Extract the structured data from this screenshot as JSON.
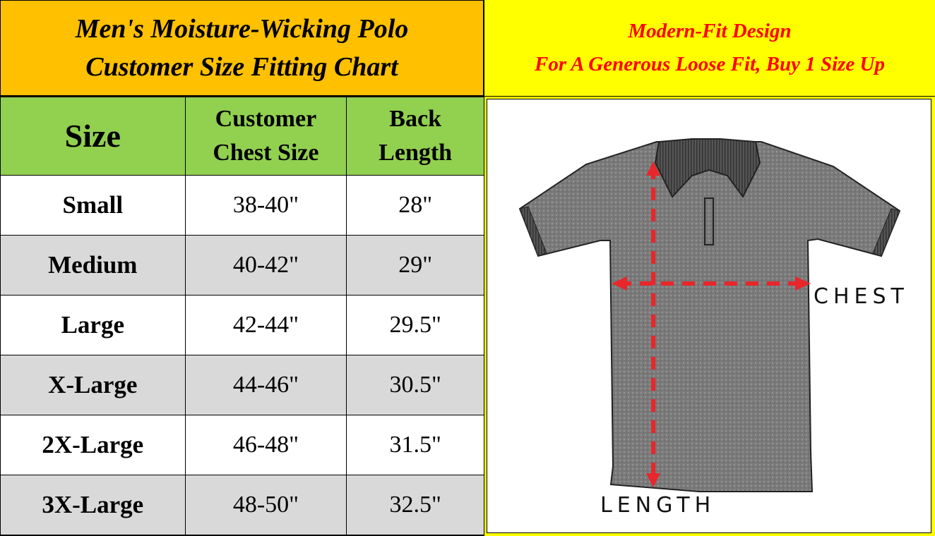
{
  "header": {
    "title_line1": "Men's Moisture-Wicking Polo",
    "title_line2": "Customer Size Fitting Chart",
    "note_line1": "Modern-Fit Design",
    "note_line2": "For A Generous Loose Fit, Buy 1 Size Up"
  },
  "table": {
    "columns": [
      "Size",
      "Customer Chest Size",
      "Back Length"
    ],
    "column_lines": [
      [
        "Size"
      ],
      [
        "Customer",
        "Chest Size"
      ],
      [
        "Back",
        "Length"
      ]
    ],
    "rows": [
      {
        "size": "Small",
        "chest": "38-40\"",
        "length": "28\""
      },
      {
        "size": "Medium",
        "chest": "40-42\"",
        "length": "29\""
      },
      {
        "size": "Large",
        "chest": "42-44\"",
        "length": "29.5\""
      },
      {
        "size": "X-Large",
        "chest": "44-46\"",
        "length": "30.5\""
      },
      {
        "size": "2X-Large",
        "chest": "46-48\"",
        "length": "31.5\""
      },
      {
        "size": "3X-Large",
        "chest": "48-50\"",
        "length": "32.5\""
      }
    ]
  },
  "diagram": {
    "chest_label": "CHEST",
    "length_label": "LENGTH"
  },
  "colors": {
    "title_bg": "#FFC000",
    "header_bg": "#92D050",
    "note_bg": "#FFFF00",
    "note_text": "#FF0000",
    "row_alt": "#D9D9D9",
    "arrow": "#E8262B"
  }
}
